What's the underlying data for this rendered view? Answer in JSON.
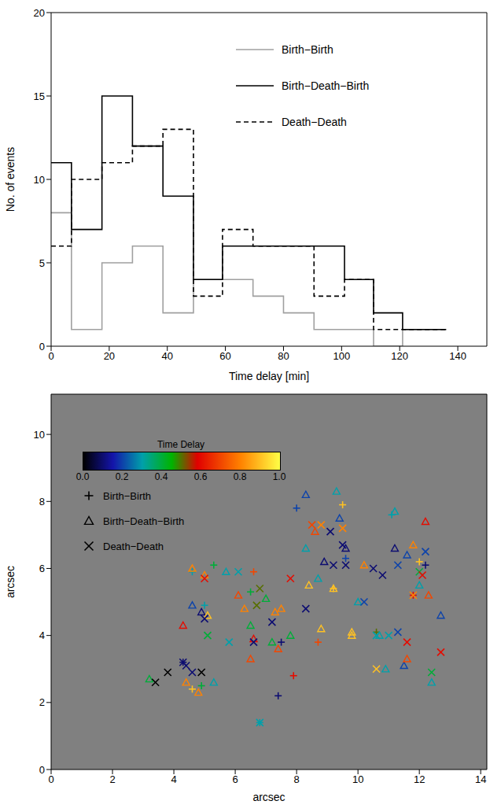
{
  "chart_data": [
    {
      "type": "line",
      "x_label": "Time delay [min]",
      "y_label": "No. of events",
      "xlim": [
        0,
        150
      ],
      "xticks": [
        0,
        20,
        40,
        60,
        80,
        100,
        120,
        140
      ],
      "ylim": [
        0,
        20
      ],
      "yticks": [
        0,
        5,
        10,
        15,
        20
      ],
      "legend": "upper right",
      "bins": [
        0,
        7,
        17.5,
        28,
        38.5,
        49,
        59,
        69.5,
        80,
        90.5,
        101,
        111,
        121,
        136
      ],
      "series": [
        {
          "name": "Birth−Birth",
          "color": "#a0a0a0",
          "line_style": "solid",
          "values": [
            8,
            1,
            5,
            6,
            2,
            4,
            4,
            3,
            2,
            1,
            1,
            0,
            1
          ]
        },
        {
          "name": "Birth−Death−Birth",
          "color": "#000000",
          "line_style": "solid",
          "values": [
            11,
            7,
            15,
            12,
            9,
            4,
            6,
            6,
            6,
            6,
            4,
            2,
            1
          ]
        },
        {
          "name": "Death−Death",
          "color": "#000000",
          "line_style": "dashed",
          "values": [
            6,
            10,
            11,
            12,
            13,
            3,
            7,
            6,
            6,
            3,
            4,
            1,
            1
          ]
        }
      ]
    },
    {
      "type": "scatter",
      "x_label": "arcsec",
      "y_label": "arcsec",
      "xlim": [
        0,
        14.2
      ],
      "xticks": [
        0,
        2,
        4,
        6,
        8,
        10,
        12,
        14
      ],
      "ylim": [
        0,
        11.2
      ],
      "yticks": [
        0,
        2,
        4,
        6,
        8,
        10
      ],
      "colorbar": {
        "label": "Time Delay",
        "range": [
          0,
          1
        ],
        "ticks": [
          {
            "value": 0,
            "label": "0.0"
          },
          {
            "value": 0.2,
            "label": "0.2"
          },
          {
            "value": 0.4,
            "label": "0.4"
          },
          {
            "value": 0.6,
            "label": "0.6"
          },
          {
            "value": 0.8,
            "label": "0.8"
          },
          {
            "value": 1,
            "label": "1.0"
          }
        ]
      },
      "legend": "upper left",
      "series": [
        {
          "name": "Birth−Birth",
          "marker": "plus",
          "x": [
            4.3,
            4.6,
            4.9,
            5.3,
            6.6,
            6.5,
            7.4,
            7.9,
            8.0,
            8.7,
            9.2,
            9.5,
            9.6,
            10.6,
            11.1,
            11.8,
            12.0,
            12.2,
            7.5,
            5.0,
            4.6,
            6.8
          ],
          "y": [
            3.2,
            2.4,
            2.5,
            6.1,
            5.9,
            5.3,
            2.2,
            2.8,
            7.8,
            3.8,
            5.4,
            7.9,
            6.3,
            4.1,
            7.6,
            5.2,
            6.2,
            6.1,
            3.8,
            4.9,
            5.9,
            1.4
          ],
          "delay": [
            0.1,
            0.9,
            0.4,
            0.4,
            0.7,
            0.4,
            0.1,
            0.6,
            0.2,
            0.7,
            0.9,
            0.9,
            0.2,
            0.5,
            0.3,
            0.6,
            0.9,
            0.1,
            0.1,
            0.3,
            0.3,
            0.3
          ]
        },
        {
          "name": "Birth−Death−Birth",
          "marker": "triangle",
          "x": [
            3.2,
            4.3,
            4.4,
            4.6,
            4.8,
            4.6,
            4.9,
            5.0,
            5.1,
            5.3,
            5.7,
            6.1,
            6.3,
            6.5,
            6.5,
            6.6,
            7.0,
            7.2,
            7.3,
            7.5,
            7.4,
            7.8,
            8.3,
            8.4,
            8.6,
            8.7,
            8.8,
            8.9,
            9.2,
            9.4,
            9.3,
            9.6,
            9.8,
            10.0,
            10.2,
            10.7,
            10.9,
            11.2,
            11.2,
            11.5,
            11.6,
            11.6,
            11.8,
            12.0,
            12.2,
            12.3,
            12.4,
            12.7,
            8.3,
            9.8
          ],
          "y": [
            2.7,
            4.3,
            2.6,
            6.0,
            2.3,
            4.9,
            4.7,
            5.8,
            4.6,
            2.6,
            5.9,
            5.2,
            4.8,
            4.3,
            3.3,
            3.9,
            5.1,
            3.8,
            4.7,
            4.8,
            3.6,
            4.0,
            6.6,
            5.5,
            7.1,
            5.7,
            4.2,
            6.2,
            5.4,
            7.5,
            8.3,
            6.6,
            4.0,
            5.0,
            6.1,
            4.0,
            3.0,
            6.6,
            7.7,
            3.1,
            6.4,
            3.3,
            6.7,
            5.5,
            7.4,
            5.2,
            2.6,
            4.6,
            8.2,
            4.1
          ],
          "delay": [
            0.4,
            0.6,
            0.8,
            0.8,
            0.8,
            0.2,
            0.1,
            0.8,
            0.9,
            0.3,
            0.3,
            0.7,
            0.8,
            0.4,
            0.7,
            0.6,
            0.4,
            0.4,
            0.8,
            0.8,
            0.7,
            0.4,
            0.3,
            0.9,
            0.7,
            0.3,
            0.9,
            0.1,
            0.9,
            0.2,
            0.3,
            0.1,
            0.9,
            0.3,
            0.8,
            0.3,
            0.3,
            0.1,
            0.3,
            0.2,
            0.2,
            0.7,
            0.8,
            0.3,
            0.6,
            0.7,
            0.3,
            0.2,
            0.2,
            0.9
          ]
        },
        {
          "name": "Death−Death",
          "marker": "x",
          "x": [
            3.4,
            3.8,
            4.3,
            4.4,
            4.6,
            4.9,
            5.0,
            5.1,
            5.0,
            5.8,
            6.1,
            6.6,
            6.7,
            6.8,
            6.8,
            7.2,
            7.8,
            8.3,
            8.5,
            8.8,
            9.1,
            9.2,
            9.5,
            9.5,
            10.2,
            10.5,
            10.6,
            10.6,
            10.8,
            11.0,
            11.3,
            11.3,
            11.6,
            11.8,
            12.0,
            12.1,
            12.2,
            12.4,
            12.7,
            9.6
          ],
          "y": [
            2.6,
            2.9,
            3.2,
            3.1,
            2.9,
            2.9,
            4.5,
            4.0,
            5.7,
            3.8,
            5.9,
            3.8,
            4.9,
            5.4,
            1.4,
            4.4,
            5.7,
            4.8,
            7.3,
            7.3,
            7.1,
            6.1,
            6.7,
            7.2,
            5.0,
            6.0,
            4.0,
            3.0,
            5.8,
            4.0,
            6.1,
            4.1,
            3.8,
            5.2,
            5.9,
            5.8,
            6.5,
            2.9,
            3.5,
            6.1
          ],
          "delay": [
            0.0,
            0.0,
            0.1,
            0.1,
            0.1,
            0.0,
            0.1,
            0.4,
            0.6,
            0.3,
            0.3,
            0.1,
            0.5,
            0.5,
            0.3,
            0.1,
            0.6,
            0.1,
            0.7,
            0.8,
            0.1,
            0.1,
            0.1,
            0.8,
            0.2,
            0.1,
            0.3,
            0.9,
            0.1,
            0.3,
            0.2,
            0.2,
            0.6,
            0.8,
            0.4,
            0.6,
            0.2,
            0.4,
            0.6,
            0.1
          ]
        }
      ]
    }
  ]
}
